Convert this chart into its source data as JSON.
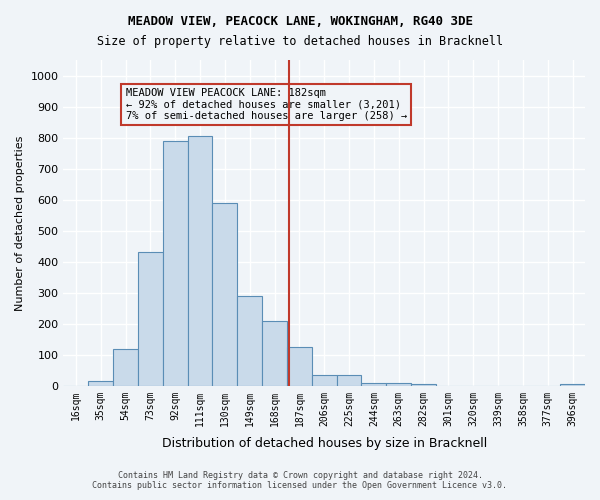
{
  "title": "MEADOW VIEW, PEACOCK LANE, WOKINGHAM, RG40 3DE",
  "subtitle": "Size of property relative to detached houses in Bracknell",
  "xlabel": "Distribution of detached houses by size in Bracknell",
  "ylabel": "Number of detached properties",
  "categories": [
    "16sqm",
    "35sqm",
    "54sqm",
    "73sqm",
    "92sqm",
    "111sqm",
    "130sqm",
    "149sqm",
    "168sqm",
    "187sqm",
    "206sqm",
    "225sqm",
    "244sqm",
    "263sqm",
    "282sqm",
    "301sqm",
    "320sqm",
    "339sqm",
    "358sqm",
    "377sqm",
    "396sqm"
  ],
  "bar_heights": [
    0,
    15,
    120,
    430,
    790,
    805,
    590,
    290,
    210,
    125,
    35,
    35,
    10,
    10,
    5,
    0,
    0,
    0,
    0,
    0,
    5
  ],
  "bar_color": "#c9daea",
  "bar_edge_color": "#5a8db5",
  "bar_width": 1.0,
  "property_value": 182,
  "property_label": "MEADOW VIEW PEACOCK LANE: 182sqm",
  "annotation_line1": "← 92% of detached houses are smaller (3,201)",
  "annotation_line2": "7% of semi-detached houses are larger (258) →",
  "vline_color": "#c0392b",
  "vline_x_index": 9.1,
  "annotation_box_color": "#c0392b",
  "ylim": [
    0,
    1050
  ],
  "yticks": [
    0,
    100,
    200,
    300,
    400,
    500,
    600,
    700,
    800,
    900,
    1000
  ],
  "background_color": "#f0f4f8",
  "grid_color": "#ffffff",
  "footnote1": "Contains HM Land Registry data © Crown copyright and database right 2024.",
  "footnote2": "Contains public sector information licensed under the Open Government Licence v3.0."
}
